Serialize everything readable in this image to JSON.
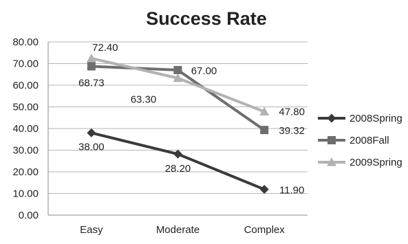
{
  "chart_data": {
    "type": "line",
    "title": "Success Rate",
    "xlabel": "",
    "ylabel": "",
    "categories": [
      "Easy",
      "Moderate",
      "Complex"
    ],
    "ylim": [
      0,
      80
    ],
    "yticks": [
      "0.00",
      "10.00",
      "20.00",
      "30.00",
      "40.00",
      "50.00",
      "60.00",
      "70.00",
      "80.00"
    ],
    "grid": true,
    "legend_position": "right",
    "series": [
      {
        "name": "2008Spring",
        "values": [
          38.0,
          28.2,
          11.9
        ],
        "labels": [
          "38.00",
          "28.20",
          "11.90"
        ],
        "color": "#3a3a3a",
        "marker": "diamond"
      },
      {
        "name": "2008Fall",
        "values": [
          68.73,
          67.0,
          39.32
        ],
        "labels": [
          "68.73",
          "67.00",
          "39.32"
        ],
        "color": "#6e6e6e",
        "marker": "square"
      },
      {
        "name": "2009Spring",
        "values": [
          72.4,
          63.3,
          47.8
        ],
        "labels": [
          "72.40",
          "63.30",
          "47.80"
        ],
        "color": "#b2b2b2",
        "marker": "triangle"
      }
    ]
  }
}
